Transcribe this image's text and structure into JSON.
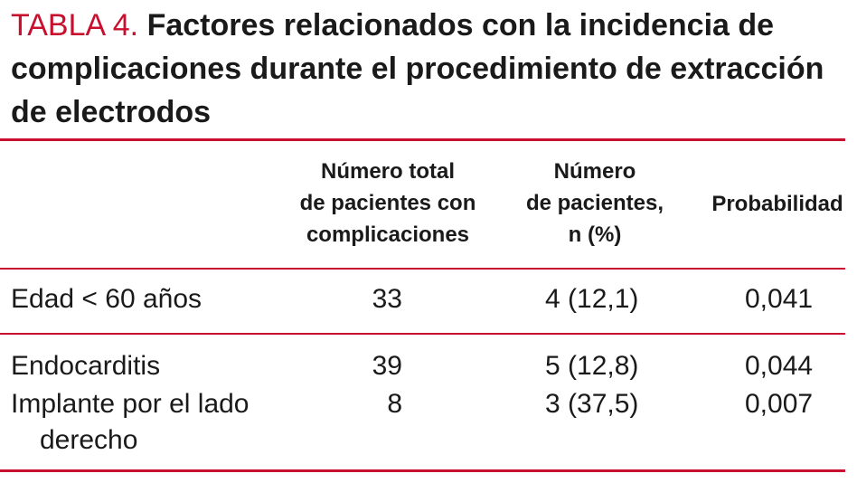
{
  "table": {
    "label": "TABLA 4.",
    "title": "Factores relacionados con la incidencia de complicaciones durante el procedimiento de extracción de electrodos",
    "headers": {
      "total": [
        "Número total",
        "de pacientes con",
        "complicaciones"
      ],
      "patients": [
        "Número",
        "de pacientes,",
        "n (%)"
      ],
      "probability": "Probabilidad"
    },
    "rows": [
      {
        "factor": "Edad < 60 años",
        "total": "33",
        "patients": "4 (12,1)",
        "probability": "0,041"
      },
      {
        "factor": "Endocarditis",
        "total": "39",
        "patients": "5 (12,8)",
        "probability": "0,044"
      },
      {
        "factor": [
          "Implante por el lado",
          "derecho"
        ],
        "total": "8",
        "patients": "3 (37,5)",
        "probability": "0,007"
      }
    ]
  },
  "colors": {
    "accent": "#c8102e",
    "text": "#1a1a1a"
  }
}
